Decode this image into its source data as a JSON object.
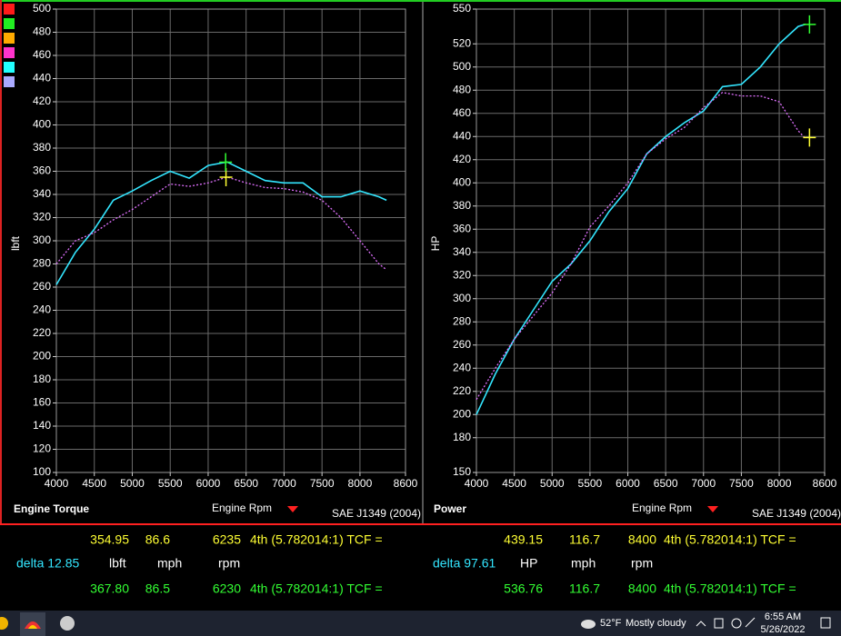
{
  "chart_data": [
    {
      "type": "line",
      "title": "Engine Torque",
      "x_label": "Engine Rpm",
      "y_label": "lbft",
      "note": "SAE J1349 (2004)",
      "x": [
        4000,
        4250,
        4500,
        4750,
        5000,
        5250,
        5500,
        5750,
        6000,
        6250,
        6500,
        6750,
        7000,
        7250,
        7500,
        7750,
        8000,
        8250,
        8350
      ],
      "series": [
        {
          "color": "#33e6ff",
          "dashed": false,
          "values": [
            262,
            290,
            310,
            335,
            343,
            352,
            360,
            354,
            365,
            368,
            360,
            352,
            350,
            350,
            338,
            338,
            343,
            338,
            335
          ]
        },
        {
          "color": "#e070ff",
          "dashed": true,
          "values": [
            280,
            300,
            307,
            318,
            327,
            338,
            349,
            347,
            350,
            355,
            350,
            346,
            345,
            342,
            335,
            320,
            300,
            280,
            275
          ]
        }
      ],
      "markers": [
        {
          "x": 6235,
          "y": 354.95,
          "color": "#ffff33"
        },
        {
          "x": 6230,
          "y": 367.8,
          "color": "#33ff33"
        }
      ],
      "xlim": [
        4000,
        8600
      ],
      "ylim": [
        100,
        500
      ],
      "xticks": [
        4000,
        4500,
        5000,
        5500,
        6000,
        6500,
        7000,
        7500,
        8000,
        8600
      ],
      "yticks": [
        100,
        120,
        140,
        160,
        180,
        200,
        220,
        240,
        260,
        280,
        300,
        320,
        340,
        360,
        380,
        400,
        420,
        440,
        460,
        480,
        500
      ],
      "grid": true
    },
    {
      "type": "line",
      "title": "Power",
      "x_label": "Engine Rpm",
      "y_label": "HP",
      "note": "SAE J1349 (2004)",
      "x": [
        4000,
        4250,
        4500,
        4750,
        5000,
        5250,
        5500,
        5750,
        6000,
        6250,
        6500,
        6750,
        7000,
        7250,
        7500,
        7750,
        8000,
        8250,
        8350
      ],
      "series": [
        {
          "color": "#33e6ff",
          "dashed": false,
          "values": [
            200,
            235,
            265,
            290,
            315,
            330,
            350,
            375,
            395,
            425,
            440,
            452,
            462,
            483,
            485,
            500,
            520,
            535,
            537
          ]
        },
        {
          "color": "#e070ff",
          "dashed": true,
          "values": [
            213,
            240,
            265,
            285,
            305,
            330,
            362,
            380,
            400,
            425,
            438,
            448,
            465,
            478,
            475,
            475,
            470,
            445,
            438
          ]
        }
      ],
      "markers": [
        {
          "x": 8400,
          "y": 439.15,
          "color": "#ffff33"
        },
        {
          "x": 8400,
          "y": 536.76,
          "color": "#33ff33"
        }
      ],
      "xlim": [
        4000,
        8600
      ],
      "ylim": [
        150,
        550
      ],
      "xticks": [
        4000,
        4500,
        5000,
        5500,
        6000,
        6500,
        7000,
        7500,
        8000,
        8600
      ],
      "yticks": [
        150,
        180,
        200,
        220,
        240,
        260,
        280,
        300,
        320,
        340,
        360,
        380,
        400,
        420,
        440,
        460,
        480,
        500,
        520,
        550
      ],
      "grid": true
    }
  ],
  "readouts": [
    {
      "top": [
        "354.95",
        "86.6",
        "6235",
        "4th (5.782014:1) TCF ="
      ],
      "delta": "delta 12.85",
      "units": [
        "lbft",
        "mph",
        "rpm"
      ],
      "bottom": [
        "367.80",
        "86.5",
        "6230",
        "4th (5.782014:1) TCF ="
      ]
    },
    {
      "top": [
        "439.15",
        "116.7",
        "8400",
        "4th (5.782014:1) TCF ="
      ],
      "delta": "delta 97.61",
      "units": [
        "HP",
        "mph",
        "rpm"
      ],
      "bottom": [
        "536.76",
        "116.7",
        "8400",
        "4th (5.782014:1) TCF ="
      ]
    }
  ],
  "taskbar": {
    "temperature": "52°F",
    "weather": "Mostly cloudy",
    "time": "6:55 AM",
    "date": "5/26/2022"
  }
}
